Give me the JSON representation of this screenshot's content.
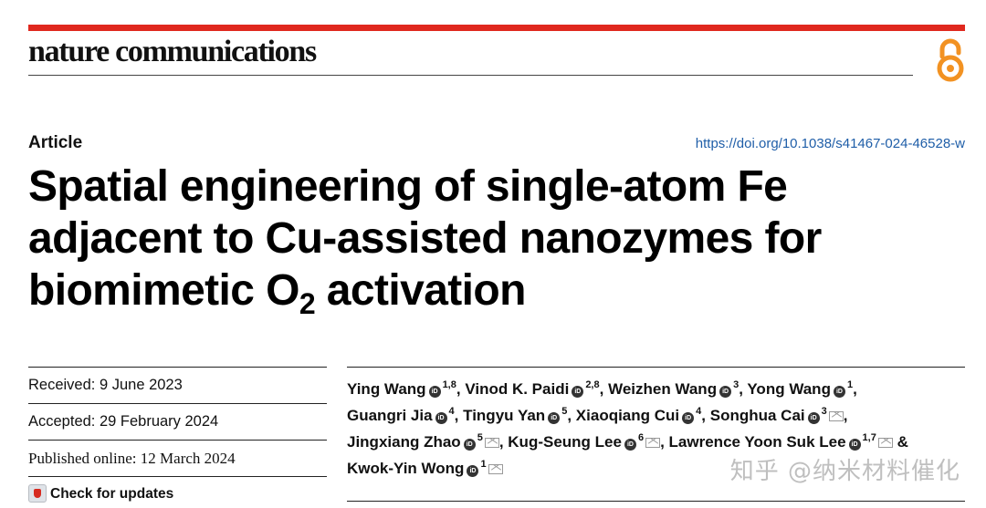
{
  "header": {
    "journal": "nature communications",
    "article_type": "Article",
    "doi": "https://doi.org/10.1038/s41467-024-46528-w"
  },
  "title": {
    "line1": "Spatial engineering of single-atom Fe",
    "line2": "adjacent to Cu-assisted nanozymes for",
    "line3_pre": "biomimetic O",
    "line3_sub": "2",
    "line3_post": " activation"
  },
  "dates": {
    "received": "Received: 9 June 2023",
    "accepted": "Accepted: 29 February 2024",
    "published": "Published online: 12 March 2024",
    "check_updates": "Check for updates"
  },
  "orcid_label": "iD",
  "authors": [
    {
      "name": "Ying Wang",
      "aff": "1,8"
    },
    {
      "name": "Vinod K. Paidi",
      "aff": "2,8"
    },
    {
      "name": "Weizhen Wang",
      "aff": "3"
    },
    {
      "name": "Yong Wang",
      "aff": "1"
    },
    {
      "name": "Guangri Jia",
      "aff": "4"
    },
    {
      "name": "Tingyu Yan",
      "aff": "5"
    },
    {
      "name": "Xiaoqiang Cui",
      "aff": "4"
    },
    {
      "name": "Songhua Cai",
      "aff": "3"
    },
    {
      "name": "Jingxiang Zhao",
      "aff": "5"
    },
    {
      "name": "Kug-Seung Lee",
      "aff": "6"
    },
    {
      "name": "Lawrence Yoon Suk Lee",
      "aff": "1,7"
    },
    {
      "name": "Kwok-Yin Wong",
      "aff": "1"
    }
  ],
  "separators": {
    "comma": ",",
    "amp": "&"
  },
  "watermark": "知乎 @纳米材料催化",
  "colors": {
    "accent_bar": "#e0281e",
    "doi_link": "#1f5ea8",
    "oa_icon": "#f29222"
  },
  "icons": {
    "open_access": "open-access-icon",
    "orcid": "orcid-icon",
    "email": "email-icon",
    "check_updates": "check-updates-icon"
  }
}
